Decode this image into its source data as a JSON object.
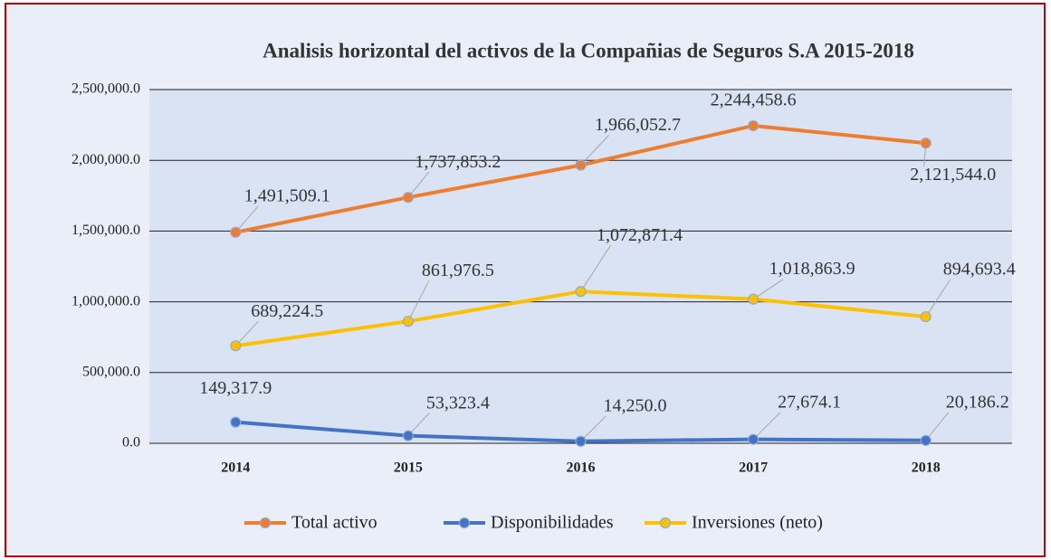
{
  "chart_data": {
    "type": "line",
    "title": "Analisis horizontal del activos de la Compañias de Seguros S.A 2015-2018",
    "categories": [
      "2014",
      "2015",
      "2016",
      "2017",
      "2018"
    ],
    "series": [
      {
        "name": "Total activo",
        "color": "#ed7d31",
        "values": [
          1491509.1,
          1737853.2,
          1966052.7,
          2244458.6,
          2121544.0
        ],
        "value_labels": [
          "1,491,509.1",
          "1,737,853.2",
          "1,966,052.7",
          "2,244,458.6",
          "2,121,544.0"
        ]
      },
      {
        "name": "Disponibilidades",
        "color": "#4472c4",
        "values": [
          149317.9,
          53323.4,
          14250.0,
          27674.1,
          20186.2
        ],
        "value_labels": [
          "149,317.9",
          "53,323.4",
          "14,250.0",
          "27,674.1",
          "20,186.2"
        ]
      },
      {
        "name": "Inversiones (neto)",
        "color": "#ffc000",
        "values": [
          689224.5,
          861976.5,
          1072871.4,
          1018863.9,
          894693.4
        ],
        "value_labels": [
          "689,224.5",
          "861,976.5",
          "1,072,871.4",
          "1,018,863.9",
          "894,693.4"
        ]
      }
    ],
    "ylim": [
      0,
      2500000
    ],
    "yticks": [
      {
        "value": 0,
        "label": "0.0"
      },
      {
        "value": 500000,
        "label": "500,000.0"
      },
      {
        "value": 1000000,
        "label": "1,000,000.0"
      },
      {
        "value": 1500000,
        "label": "1,500,000.0"
      },
      {
        "value": 2000000,
        "label": "2,000,000.0"
      },
      {
        "value": 2500000,
        "label": "2,500,000.0"
      }
    ],
    "grid": true,
    "legend": "bottom"
  }
}
